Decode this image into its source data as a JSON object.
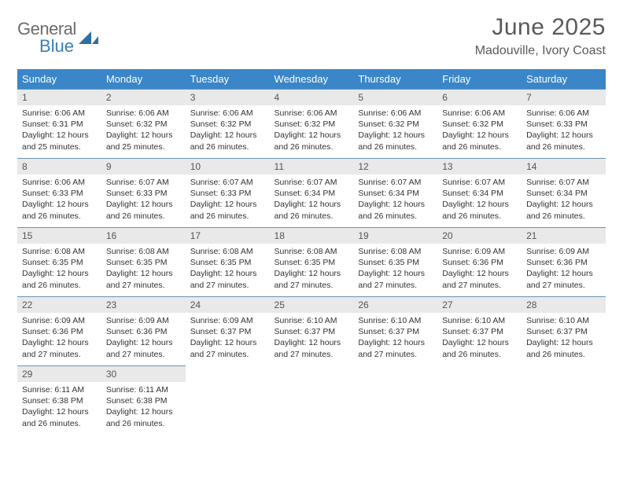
{
  "brand": {
    "part1": "General",
    "part2": "Blue"
  },
  "title": "June 2025",
  "location": "Madouville, Ivory Coast",
  "colors": {
    "header_bg": "#3a86c8",
    "header_text": "#ffffff",
    "daynum_bg": "#e9e9e9",
    "row_border": "#6b93b5",
    "text": "#333333",
    "brand_gray": "#6b6b6b",
    "brand_blue": "#3a7fb5"
  },
  "weekdays": [
    "Sunday",
    "Monday",
    "Tuesday",
    "Wednesday",
    "Thursday",
    "Friday",
    "Saturday"
  ],
  "weeks": [
    [
      {
        "num": "1",
        "sunrise": "Sunrise: 6:06 AM",
        "sunset": "Sunset: 6:31 PM",
        "daylight": "Daylight: 12 hours and 25 minutes."
      },
      {
        "num": "2",
        "sunrise": "Sunrise: 6:06 AM",
        "sunset": "Sunset: 6:32 PM",
        "daylight": "Daylight: 12 hours and 25 minutes."
      },
      {
        "num": "3",
        "sunrise": "Sunrise: 6:06 AM",
        "sunset": "Sunset: 6:32 PM",
        "daylight": "Daylight: 12 hours and 26 minutes."
      },
      {
        "num": "4",
        "sunrise": "Sunrise: 6:06 AM",
        "sunset": "Sunset: 6:32 PM",
        "daylight": "Daylight: 12 hours and 26 minutes."
      },
      {
        "num": "5",
        "sunrise": "Sunrise: 6:06 AM",
        "sunset": "Sunset: 6:32 PM",
        "daylight": "Daylight: 12 hours and 26 minutes."
      },
      {
        "num": "6",
        "sunrise": "Sunrise: 6:06 AM",
        "sunset": "Sunset: 6:32 PM",
        "daylight": "Daylight: 12 hours and 26 minutes."
      },
      {
        "num": "7",
        "sunrise": "Sunrise: 6:06 AM",
        "sunset": "Sunset: 6:33 PM",
        "daylight": "Daylight: 12 hours and 26 minutes."
      }
    ],
    [
      {
        "num": "8",
        "sunrise": "Sunrise: 6:06 AM",
        "sunset": "Sunset: 6:33 PM",
        "daylight": "Daylight: 12 hours and 26 minutes."
      },
      {
        "num": "9",
        "sunrise": "Sunrise: 6:07 AM",
        "sunset": "Sunset: 6:33 PM",
        "daylight": "Daylight: 12 hours and 26 minutes."
      },
      {
        "num": "10",
        "sunrise": "Sunrise: 6:07 AM",
        "sunset": "Sunset: 6:33 PM",
        "daylight": "Daylight: 12 hours and 26 minutes."
      },
      {
        "num": "11",
        "sunrise": "Sunrise: 6:07 AM",
        "sunset": "Sunset: 6:34 PM",
        "daylight": "Daylight: 12 hours and 26 minutes."
      },
      {
        "num": "12",
        "sunrise": "Sunrise: 6:07 AM",
        "sunset": "Sunset: 6:34 PM",
        "daylight": "Daylight: 12 hours and 26 minutes."
      },
      {
        "num": "13",
        "sunrise": "Sunrise: 6:07 AM",
        "sunset": "Sunset: 6:34 PM",
        "daylight": "Daylight: 12 hours and 26 minutes."
      },
      {
        "num": "14",
        "sunrise": "Sunrise: 6:07 AM",
        "sunset": "Sunset: 6:34 PM",
        "daylight": "Daylight: 12 hours and 26 minutes."
      }
    ],
    [
      {
        "num": "15",
        "sunrise": "Sunrise: 6:08 AM",
        "sunset": "Sunset: 6:35 PM",
        "daylight": "Daylight: 12 hours and 26 minutes."
      },
      {
        "num": "16",
        "sunrise": "Sunrise: 6:08 AM",
        "sunset": "Sunset: 6:35 PM",
        "daylight": "Daylight: 12 hours and 27 minutes."
      },
      {
        "num": "17",
        "sunrise": "Sunrise: 6:08 AM",
        "sunset": "Sunset: 6:35 PM",
        "daylight": "Daylight: 12 hours and 27 minutes."
      },
      {
        "num": "18",
        "sunrise": "Sunrise: 6:08 AM",
        "sunset": "Sunset: 6:35 PM",
        "daylight": "Daylight: 12 hours and 27 minutes."
      },
      {
        "num": "19",
        "sunrise": "Sunrise: 6:08 AM",
        "sunset": "Sunset: 6:35 PM",
        "daylight": "Daylight: 12 hours and 27 minutes."
      },
      {
        "num": "20",
        "sunrise": "Sunrise: 6:09 AM",
        "sunset": "Sunset: 6:36 PM",
        "daylight": "Daylight: 12 hours and 27 minutes."
      },
      {
        "num": "21",
        "sunrise": "Sunrise: 6:09 AM",
        "sunset": "Sunset: 6:36 PM",
        "daylight": "Daylight: 12 hours and 27 minutes."
      }
    ],
    [
      {
        "num": "22",
        "sunrise": "Sunrise: 6:09 AM",
        "sunset": "Sunset: 6:36 PM",
        "daylight": "Daylight: 12 hours and 27 minutes."
      },
      {
        "num": "23",
        "sunrise": "Sunrise: 6:09 AM",
        "sunset": "Sunset: 6:36 PM",
        "daylight": "Daylight: 12 hours and 27 minutes."
      },
      {
        "num": "24",
        "sunrise": "Sunrise: 6:09 AM",
        "sunset": "Sunset: 6:37 PM",
        "daylight": "Daylight: 12 hours and 27 minutes."
      },
      {
        "num": "25",
        "sunrise": "Sunrise: 6:10 AM",
        "sunset": "Sunset: 6:37 PM",
        "daylight": "Daylight: 12 hours and 27 minutes."
      },
      {
        "num": "26",
        "sunrise": "Sunrise: 6:10 AM",
        "sunset": "Sunset: 6:37 PM",
        "daylight": "Daylight: 12 hours and 27 minutes."
      },
      {
        "num": "27",
        "sunrise": "Sunrise: 6:10 AM",
        "sunset": "Sunset: 6:37 PM",
        "daylight": "Daylight: 12 hours and 26 minutes."
      },
      {
        "num": "28",
        "sunrise": "Sunrise: 6:10 AM",
        "sunset": "Sunset: 6:37 PM",
        "daylight": "Daylight: 12 hours and 26 minutes."
      }
    ],
    [
      {
        "num": "29",
        "sunrise": "Sunrise: 6:11 AM",
        "sunset": "Sunset: 6:38 PM",
        "daylight": "Daylight: 12 hours and 26 minutes."
      },
      {
        "num": "30",
        "sunrise": "Sunrise: 6:11 AM",
        "sunset": "Sunset: 6:38 PM",
        "daylight": "Daylight: 12 hours and 26 minutes."
      },
      null,
      null,
      null,
      null,
      null
    ]
  ]
}
